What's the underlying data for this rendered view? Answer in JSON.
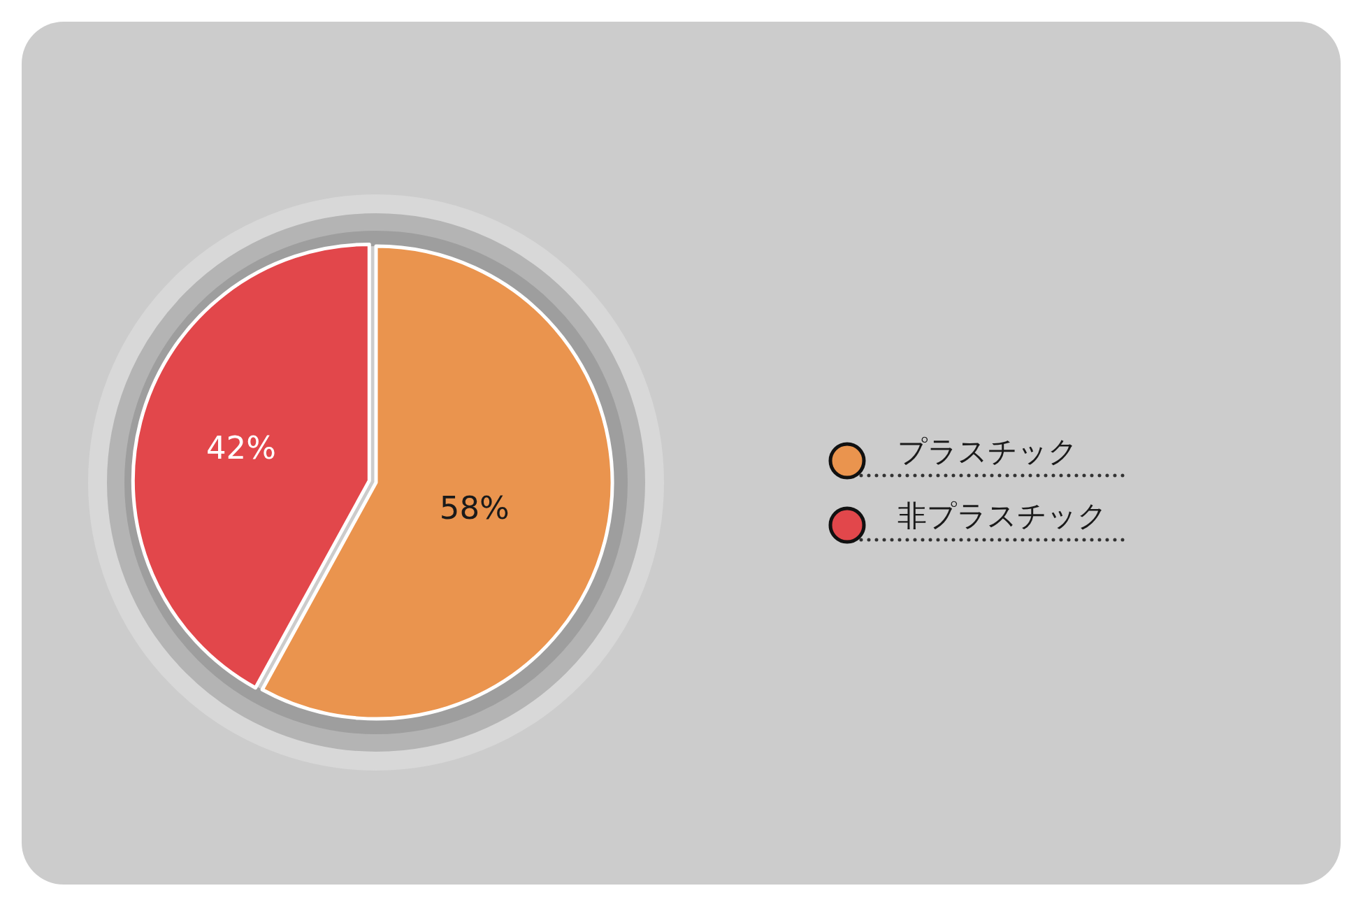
{
  "chart_data": {
    "type": "pie",
    "categories": [
      "プラスチック",
      "非プラスチック"
    ],
    "values": [
      58,
      42
    ],
    "colors": [
      "#ea944e",
      "#e2474b"
    ],
    "value_labels": [
      "58%",
      "42%"
    ],
    "legend": "right"
  }
}
